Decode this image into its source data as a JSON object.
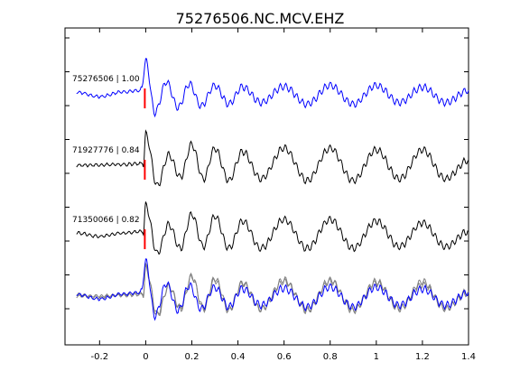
{
  "chart_data": {
    "type": "line",
    "title": "75276506.NC.MCV.EHZ",
    "xlabel": "",
    "ylabel": "",
    "xlim": [
      -0.35,
      1.4
    ],
    "x_ticks": [
      "-0.2",
      "0",
      "0.2",
      "0.4",
      "0.6",
      "0.8",
      "1",
      "1.2",
      "1.4"
    ],
    "x_tick_values": [
      -0.2,
      0,
      0.2,
      0.4,
      0.6,
      0.8,
      1.0,
      1.2,
      1.4
    ],
    "grid": false,
    "pick_marker_color": "#ff0000",
    "series": [
      {
        "name": "75276506 | 1.00",
        "color": "#0000ff",
        "role": "master",
        "x_start": -0.35,
        "x_end": 1.4,
        "peaks": [
          [
            -0.3,
            0.05
          ],
          [
            -0.2,
            -0.08
          ],
          [
            -0.1,
            0.06
          ],
          [
            -0.02,
            0.1
          ],
          [
            0.0,
            0.95
          ],
          [
            0.04,
            -0.55
          ],
          [
            0.09,
            0.35
          ],
          [
            0.14,
            -0.4
          ],
          [
            0.19,
            0.3
          ],
          [
            0.24,
            -0.35
          ],
          [
            0.3,
            0.25
          ],
          [
            0.36,
            -0.3
          ],
          [
            0.42,
            0.2
          ],
          [
            0.5,
            -0.25
          ],
          [
            0.6,
            0.22
          ],
          [
            0.7,
            -0.3
          ],
          [
            0.8,
            0.25
          ],
          [
            0.9,
            -0.3
          ],
          [
            1.0,
            0.25
          ],
          [
            1.1,
            -0.25
          ],
          [
            1.2,
            0.2
          ],
          [
            1.3,
            -0.25
          ],
          [
            1.4,
            0.1
          ]
        ]
      },
      {
        "name": "71927776 | 0.84",
        "color": "#000000",
        "role": "event",
        "x_start": -0.35,
        "x_end": 1.4,
        "peaks": [
          [
            -0.3,
            0.0
          ],
          [
            -0.1,
            0.02
          ],
          [
            -0.01,
            0.05
          ],
          [
            0.0,
            0.9
          ],
          [
            0.05,
            -0.6
          ],
          [
            0.1,
            0.3
          ],
          [
            0.15,
            -0.35
          ],
          [
            0.2,
            0.6
          ],
          [
            0.25,
            -0.4
          ],
          [
            0.3,
            0.5
          ],
          [
            0.36,
            -0.45
          ],
          [
            0.42,
            0.4
          ],
          [
            0.5,
            -0.4
          ],
          [
            0.6,
            0.5
          ],
          [
            0.7,
            -0.45
          ],
          [
            0.8,
            0.5
          ],
          [
            0.9,
            -0.45
          ],
          [
            1.0,
            0.45
          ],
          [
            1.1,
            -0.4
          ],
          [
            1.2,
            0.45
          ],
          [
            1.3,
            -0.4
          ],
          [
            1.4,
            0.15
          ]
        ]
      },
      {
        "name": "71350066 | 0.82",
        "color": "#000000",
        "role": "event",
        "x_start": -0.35,
        "x_end": 1.4,
        "peaks": [
          [
            -0.3,
            0.05
          ],
          [
            -0.2,
            -0.05
          ],
          [
            -0.1,
            0.05
          ],
          [
            -0.01,
            0.1
          ],
          [
            0.0,
            0.85
          ],
          [
            0.05,
            -0.55
          ],
          [
            0.1,
            0.3
          ],
          [
            0.15,
            -0.4
          ],
          [
            0.2,
            0.6
          ],
          [
            0.25,
            -0.35
          ],
          [
            0.3,
            0.55
          ],
          [
            0.36,
            -0.4
          ],
          [
            0.42,
            0.4
          ],
          [
            0.5,
            -0.4
          ],
          [
            0.6,
            0.45
          ],
          [
            0.7,
            -0.4
          ],
          [
            0.8,
            0.45
          ],
          [
            0.9,
            -0.4
          ],
          [
            1.0,
            0.4
          ],
          [
            1.1,
            -0.35
          ],
          [
            1.2,
            0.35
          ],
          [
            1.3,
            -0.35
          ],
          [
            1.4,
            0.1
          ]
        ]
      }
    ]
  }
}
